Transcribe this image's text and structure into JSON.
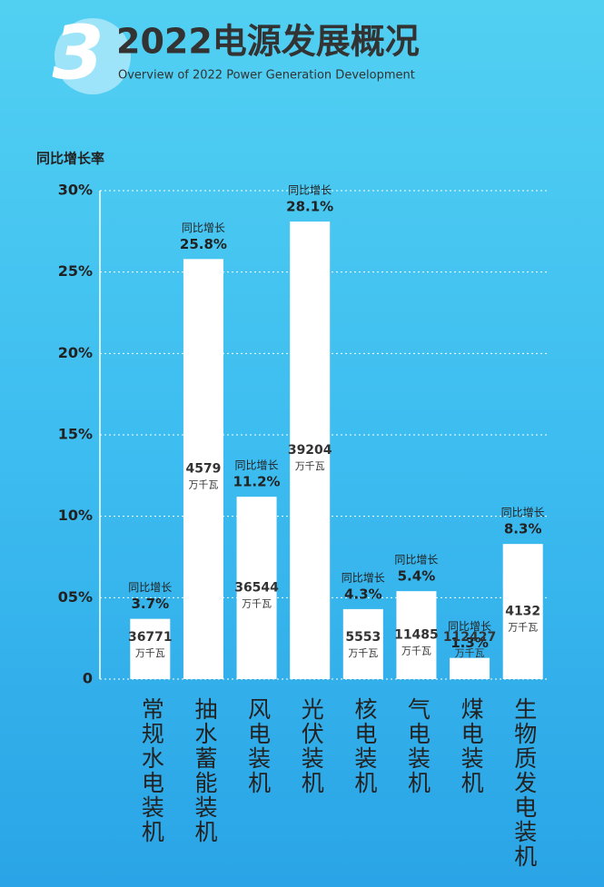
{
  "section_number": "3",
  "chart_data": {
    "type": "bar",
    "title": "2022电源发展概况",
    "subtitle": "Overview of 2022 Power Generation Development",
    "y_label": "同比增长率",
    "categories": [
      "常规水电装机",
      "抽水蓄能装机",
      "风电装机",
      "光伏装机",
      "核电装机",
      "气电装机",
      "煤电装机",
      "生物质发电装机"
    ],
    "values": [
      3.7,
      25.8,
      11.2,
      28.1,
      4.3,
      5.4,
      1.3,
      8.3
    ],
    "value_labels": [
      "3.7%",
      "25.8%",
      "11.2%",
      "28.1%",
      "4.3%",
      "5.4%",
      "1.3%",
      "8.3%"
    ],
    "value_label_prefix": "同比增长",
    "capacities": [
      36771,
      4579,
      36544,
      39204,
      5553,
      11485,
      112427,
      4132
    ],
    "capacity_unit": "万千瓦",
    "color": "#ffffff",
    "ylim": [
      0,
      30
    ],
    "yticks": [
      0,
      {
        "value": 5,
        "label": "05%"
      },
      {
        "value": 10,
        "label": "10%"
      },
      {
        "value": 15,
        "label": "15%"
      },
      {
        "value": 20,
        "label": "20%"
      },
      {
        "value": 25,
        "label": "25%"
      },
      {
        "value": 30,
        "label": "30%"
      }
    ],
    "grid": true
  }
}
